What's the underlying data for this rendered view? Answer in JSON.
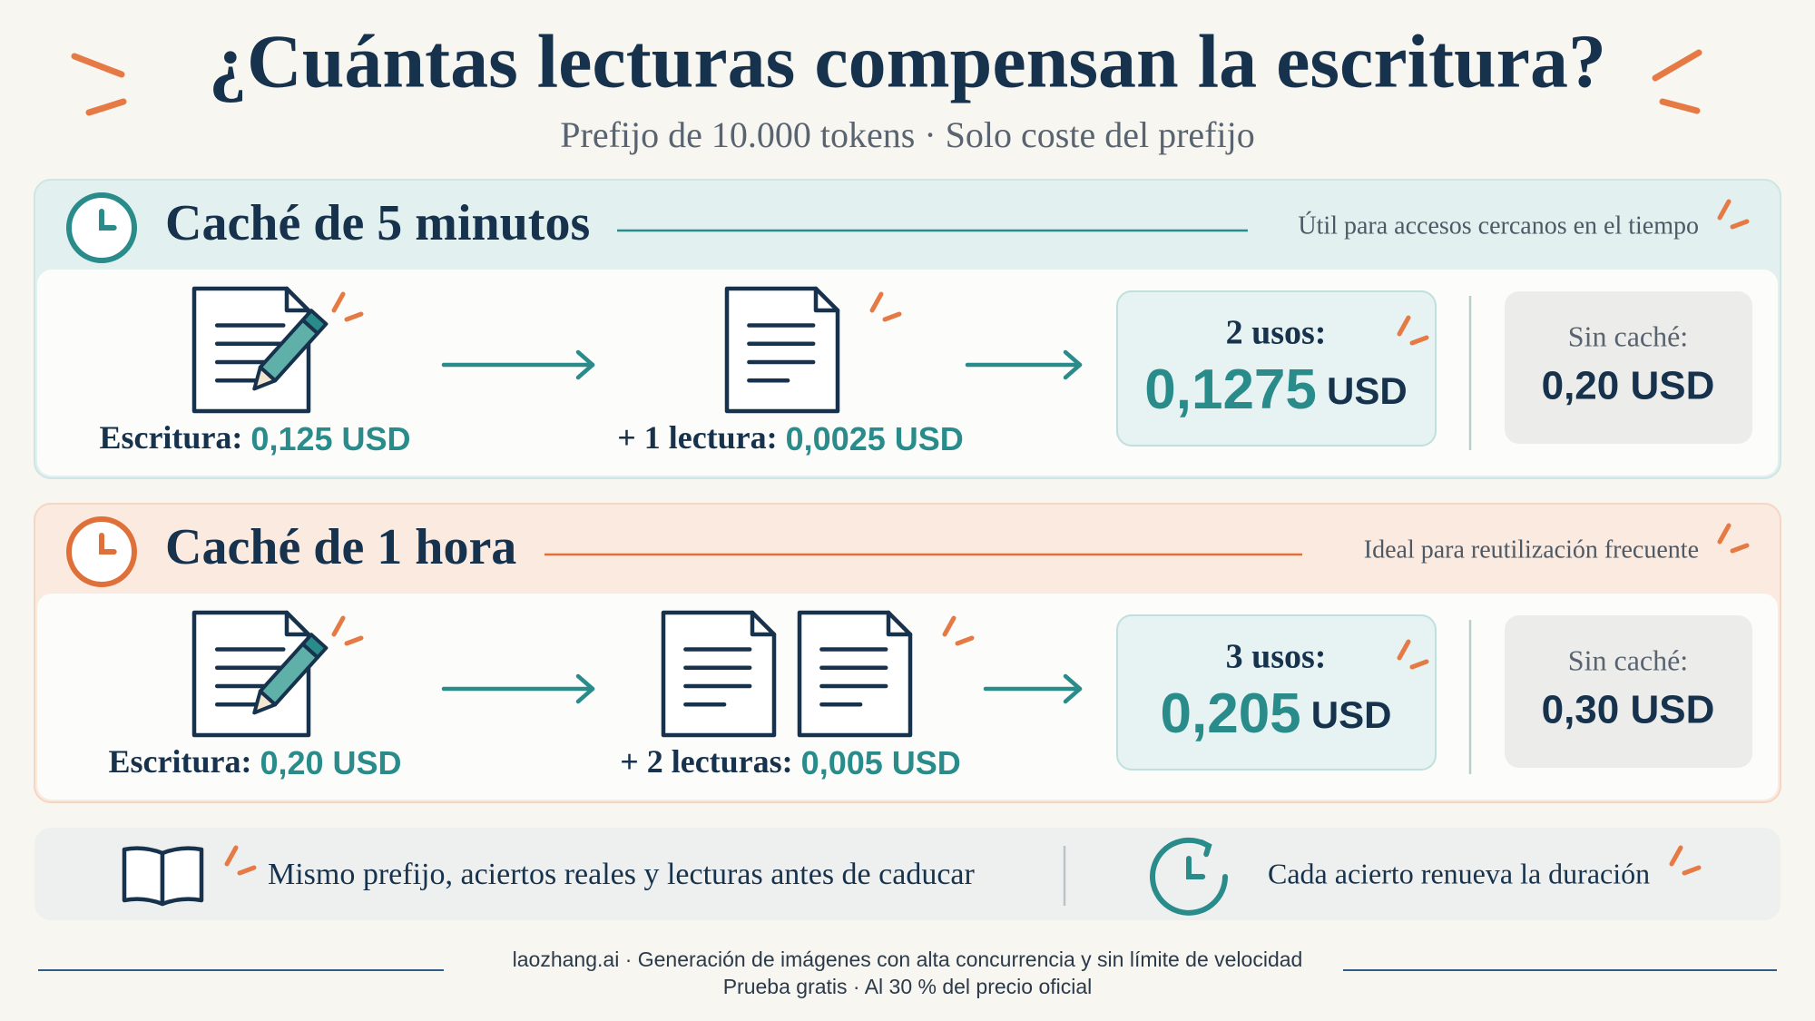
{
  "header": {
    "title": "¿Cuántas lecturas compensan la escritura?",
    "subtitle": "Prefijo de 10.000 tokens · Solo coste del prefijo"
  },
  "sections": [
    {
      "title": "Caché de 5 minutos",
      "note": "Útil para accesos cercanos en el tiempo",
      "write_label": "Escritura:",
      "write_value": "0,125 USD",
      "read_label": "+ 1 lectura:",
      "read_value": "0,0025 USD",
      "total_label": "2 usos:",
      "total_value": "0,1275",
      "total_unit": "USD",
      "nocache_label": "Sin caché:",
      "nocache_value": "0,20 USD"
    },
    {
      "title": "Caché de 1 hora",
      "note": "Ideal para reutilización frecuente",
      "write_label": "Escritura:",
      "write_value": "0,20 USD",
      "read_label": "+ 2 lecturas:",
      "read_value": "0,005 USD",
      "total_label": "3 usos:",
      "total_value": "0,205",
      "total_unit": "USD",
      "nocache_label": "Sin caché:",
      "nocache_value": "0,30 USD"
    }
  ],
  "footer": {
    "items": [
      "Mismo prefijo, aciertos reales y lecturas antes de caducar",
      "Cada acierto renueva la duración"
    ]
  },
  "credits": [
    "laozhang.ai · Generación de imágenes con alta concurrencia y sin límite de velocidad",
    "Prueba gratis · Al 30 % del precio oficial"
  ]
}
